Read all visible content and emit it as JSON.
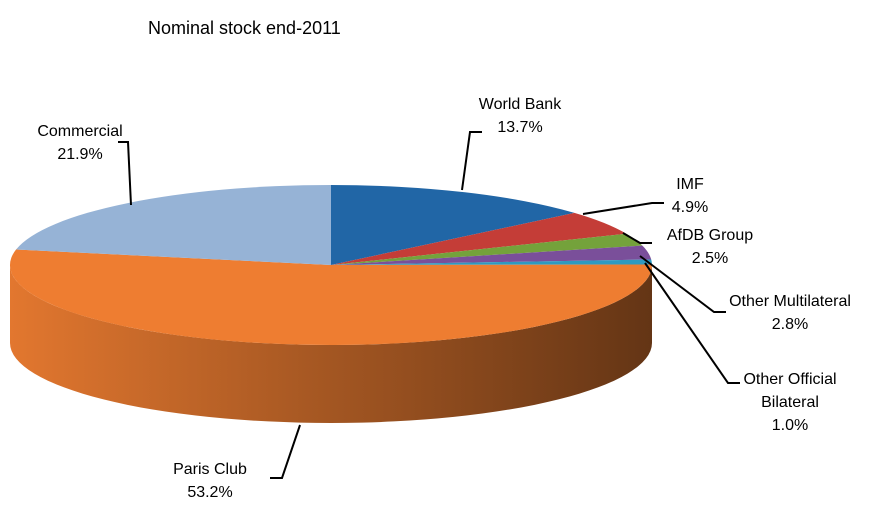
{
  "chart_data": {
    "type": "pie",
    "title": "Nominal stock end-2011",
    "categories": [
      "World Bank",
      "IMF",
      "AfDB Group",
      "Other Multilateral",
      "Other Official Bilateral",
      "Paris Club",
      "Commercial"
    ],
    "values": [
      13.7,
      4.9,
      2.5,
      2.8,
      1.0,
      53.2,
      21.9
    ],
    "value_labels": [
      "13.7%",
      "4.9%",
      "2.5%",
      "2.8%",
      "1.0%",
      "53.2%",
      "21.9%"
    ],
    "colors": [
      "#2166a6",
      "#c43d37",
      "#74a23b",
      "#7a4f9a",
      "#2e9ac0",
      "#ee7d31",
      "#96b3d6"
    ]
  }
}
